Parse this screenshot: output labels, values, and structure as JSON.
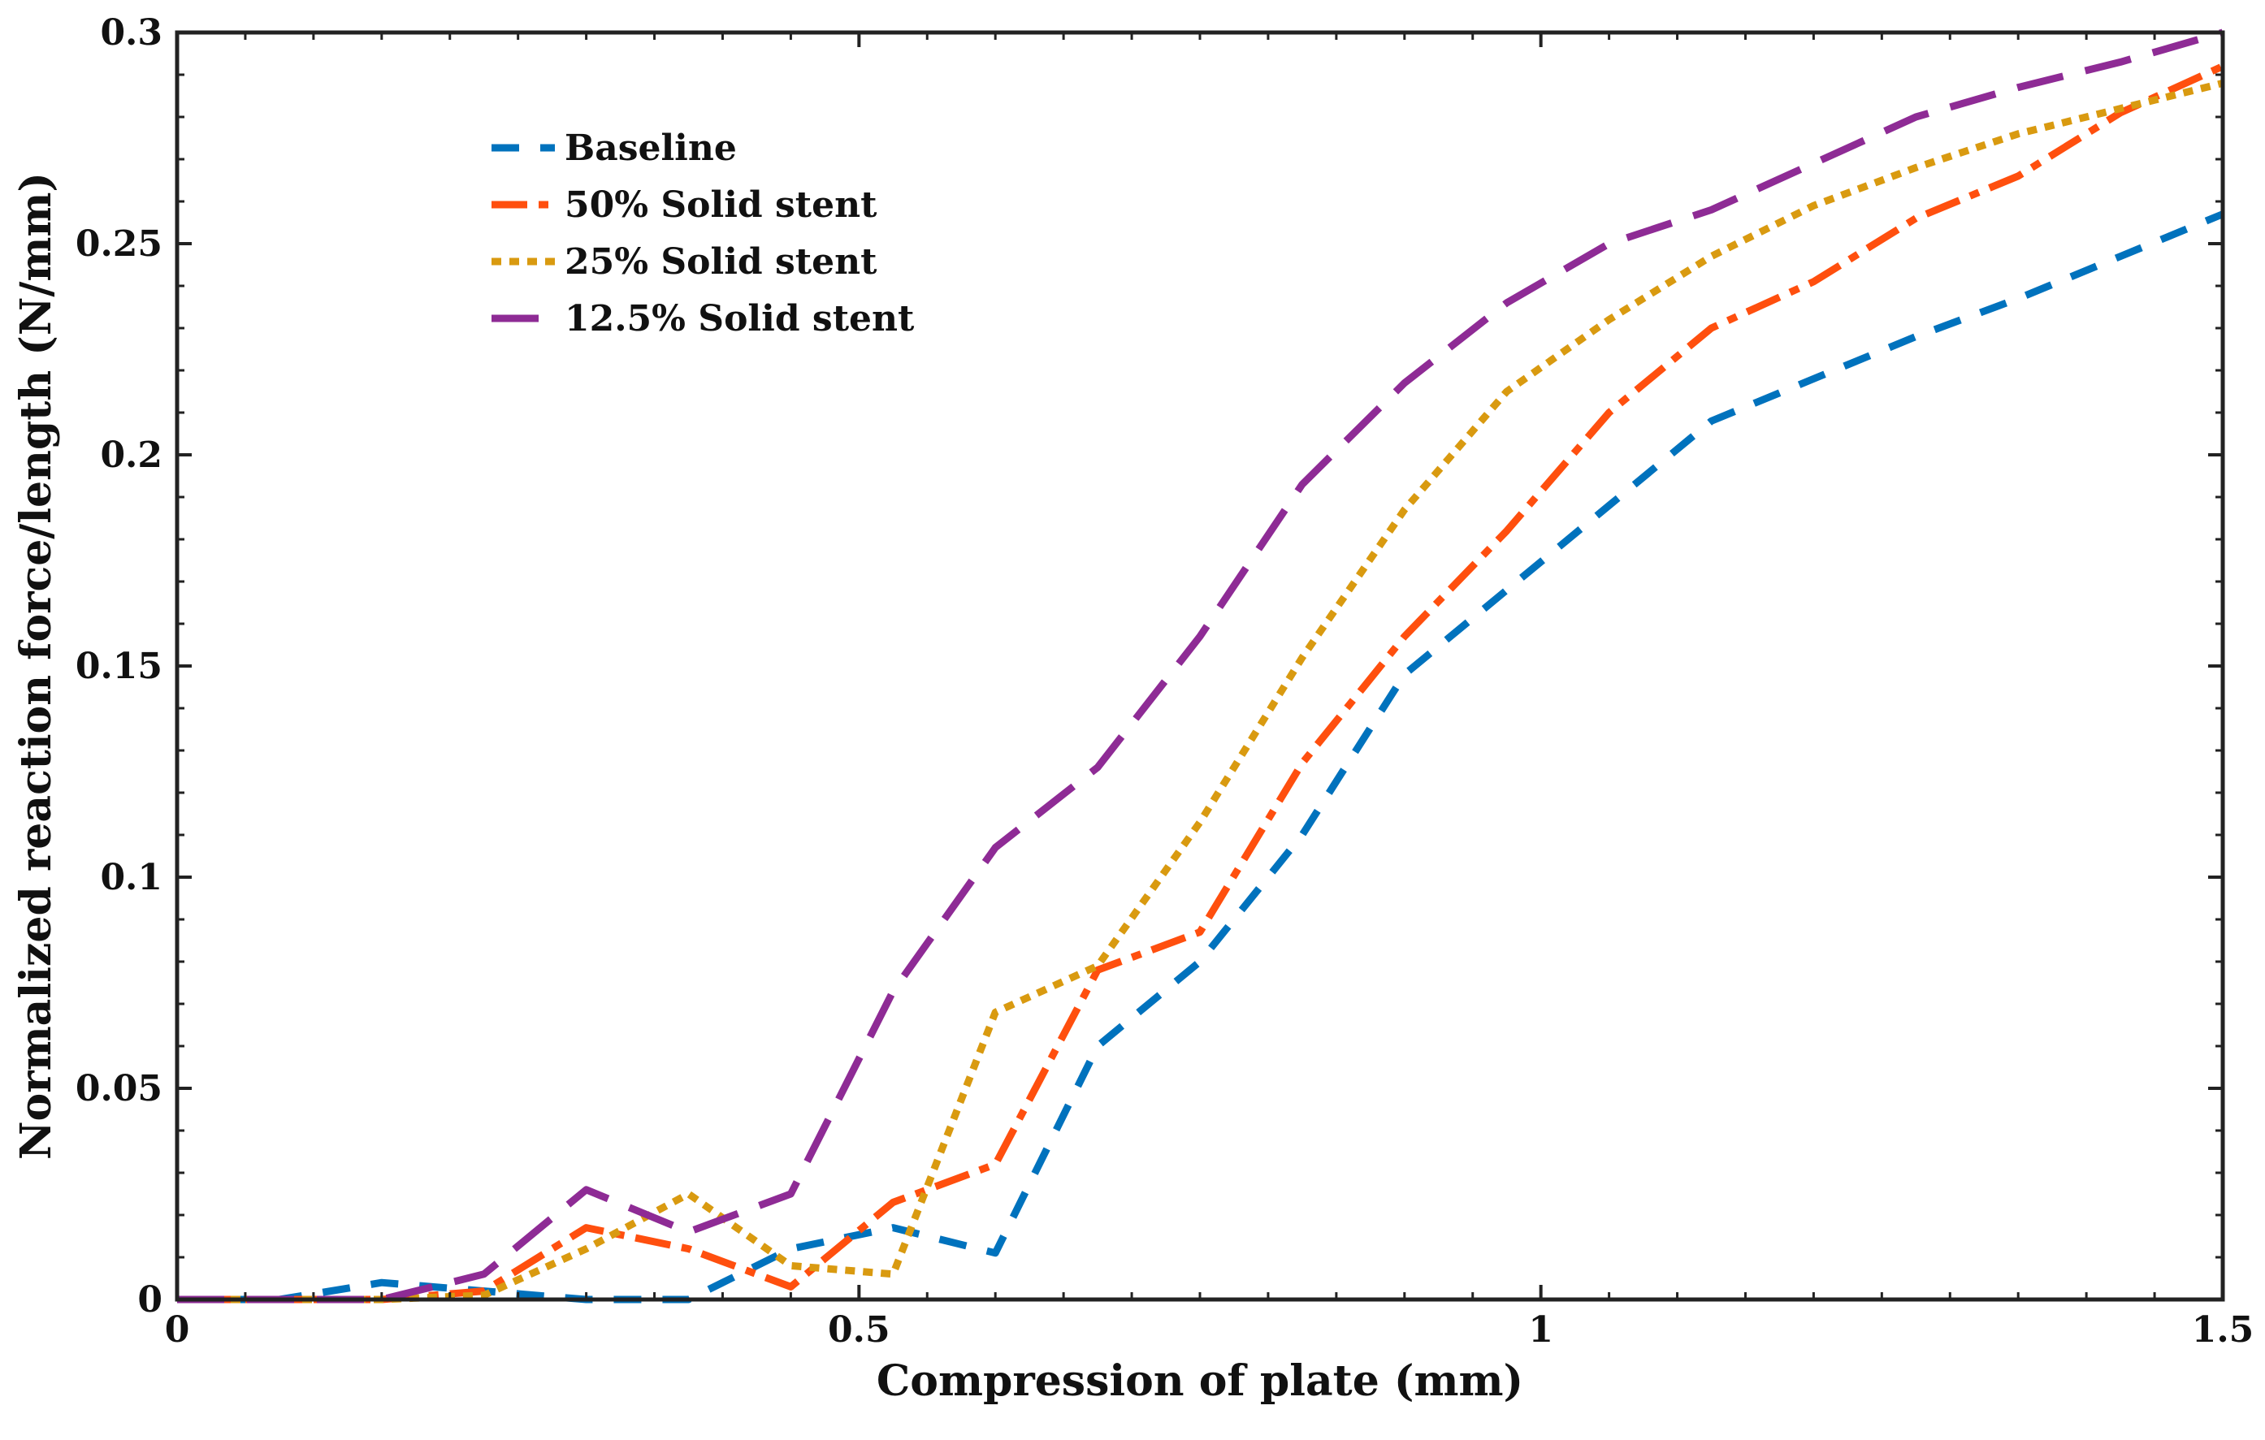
{
  "chart_data": {
    "type": "line",
    "title": "",
    "xlabel": "Compression of plate (mm)",
    "ylabel": "Normalized reaction force/length (N/mm)",
    "xlim": [
      0,
      1.5
    ],
    "ylim": [
      0,
      0.3
    ],
    "xticks": [
      0,
      0.5,
      1,
      1.5
    ],
    "xtick_labels": [
      "0",
      "0.5",
      "1",
      "1.5"
    ],
    "yticks": [
      0,
      0.05,
      0.1,
      0.15,
      0.2,
      0.25,
      0.3
    ],
    "ytick_labels": [
      "0",
      "0.05",
      "0.1",
      "0.15",
      "0.2",
      "0.25",
      "0.3"
    ],
    "grid": false,
    "legend_position": "top-left",
    "series": [
      {
        "name": "Baseline",
        "color": "#0072BD",
        "style": "dashed",
        "x": [
          0,
          0.075,
          0.15,
          0.225,
          0.3,
          0.375,
          0.45,
          0.525,
          0.6,
          0.675,
          0.75,
          0.825,
          0.9,
          0.975,
          1.05,
          1.125,
          1.2,
          1.275,
          1.35,
          1.425,
          1.5
        ],
        "y": [
          0,
          0,
          0.004,
          0.002,
          0,
          0,
          0.012,
          0.017,
          0.011,
          0.06,
          0.08,
          0.11,
          0.148,
          0.168,
          0.188,
          0.208,
          0.218,
          0.228,
          0.237,
          0.247,
          0.257
        ]
      },
      {
        "name": "50% Solid stent",
        "color": "#FF4F0E",
        "style": "dashdot",
        "x": [
          0,
          0.075,
          0.15,
          0.225,
          0.3,
          0.375,
          0.45,
          0.525,
          0.6,
          0.675,
          0.75,
          0.825,
          0.9,
          0.975,
          1.05,
          1.125,
          1.2,
          1.275,
          1.35,
          1.425,
          1.5
        ],
        "y": [
          0,
          0,
          0,
          0.002,
          0.017,
          0.012,
          0.003,
          0.023,
          0.032,
          0.078,
          0.087,
          0.127,
          0.157,
          0.182,
          0.21,
          0.23,
          0.241,
          0.256,
          0.266,
          0.281,
          0.292
        ]
      },
      {
        "name": "25% Solid stent",
        "color": "#D99A10",
        "style": "dotted",
        "x": [
          0,
          0.075,
          0.15,
          0.225,
          0.3,
          0.375,
          0.45,
          0.525,
          0.6,
          0.675,
          0.75,
          0.825,
          0.9,
          0.975,
          1.05,
          1.125,
          1.2,
          1.275,
          1.35,
          1.425,
          1.5
        ],
        "y": [
          0,
          0,
          0,
          0.001,
          0.012,
          0.025,
          0.008,
          0.006,
          0.068,
          0.079,
          0.113,
          0.152,
          0.187,
          0.215,
          0.232,
          0.247,
          0.259,
          0.268,
          0.276,
          0.282,
          0.288
        ]
      },
      {
        "name": "12.5% Solid stent",
        "color": "#8E2B95",
        "style": "longdash",
        "x": [
          0,
          0.075,
          0.15,
          0.225,
          0.3,
          0.375,
          0.45,
          0.525,
          0.6,
          0.675,
          0.75,
          0.825,
          0.9,
          0.975,
          1.05,
          1.125,
          1.2,
          1.275,
          1.35,
          1.425,
          1.5
        ],
        "y": [
          0,
          0,
          0,
          0.006,
          0.026,
          0.016,
          0.025,
          0.073,
          0.107,
          0.126,
          0.157,
          0.193,
          0.217,
          0.236,
          0.25,
          0.258,
          0.269,
          0.28,
          0.287,
          0.293,
          0.3
        ]
      }
    ]
  }
}
